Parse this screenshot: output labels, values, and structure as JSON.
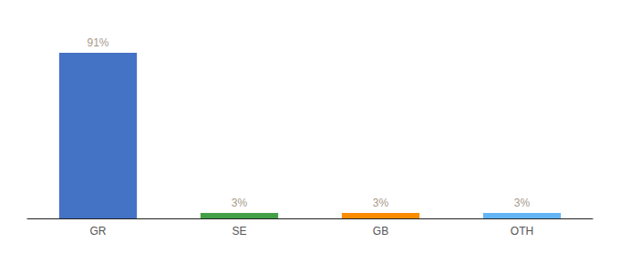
{
  "chart_data": {
    "type": "bar",
    "categories": [
      "GR",
      "SE",
      "GB",
      "OTH"
    ],
    "values": [
      91,
      3,
      3,
      3
    ],
    "value_labels": [
      "91%",
      "3%",
      "3%",
      "3%"
    ],
    "colors": [
      "#4472c4",
      "#43a047",
      "#fb8c00",
      "#64b5f6"
    ],
    "ylim": [
      0,
      105
    ],
    "data_labels": true,
    "tick_labels": "x",
    "grid": false
  }
}
